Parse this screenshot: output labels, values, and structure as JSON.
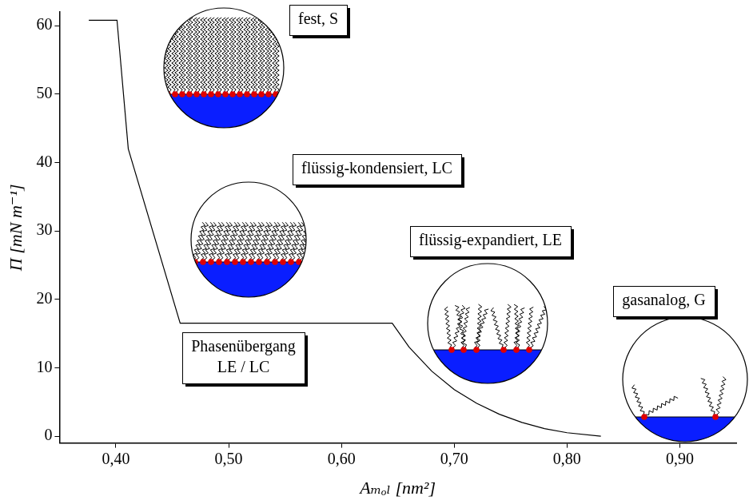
{
  "chart_data": {
    "type": "line",
    "x_label": "Aₘₒₗ [nm²]",
    "y_label": "Π [mN m⁻¹]",
    "x": [
      0.376,
      0.401,
      0.411,
      0.457,
      0.645,
      0.66,
      0.68,
      0.7,
      0.72,
      0.74,
      0.76,
      0.78,
      0.8,
      0.83
    ],
    "values": [
      60.8,
      60.8,
      42,
      16.5,
      16.5,
      13,
      9.5,
      6.8,
      4.8,
      3.2,
      2.0,
      1.1,
      0.5,
      0
    ],
    "color": "#000000",
    "xlim": [
      0.35,
      0.95
    ],
    "ylim": [
      -1,
      62
    ],
    "xticks": [
      {
        "value": 0.4,
        "label": "0,40"
      },
      {
        "value": 0.5,
        "label": "0,50"
      },
      {
        "value": 0.6,
        "label": "0,60"
      },
      {
        "value": 0.7,
        "label": "0,70"
      },
      {
        "value": 0.8,
        "label": "0,80"
      },
      {
        "value": 0.9,
        "label": "0,90"
      }
    ],
    "yticks": [
      0,
      10,
      20,
      30,
      40,
      50,
      60
    ],
    "grid": false,
    "annotations": [
      "fest, S",
      "flüssig-kondensiert, LC",
      "flüssig-expandiert, LE",
      "gasanalog, G",
      "Phasenübergang\nLE / LC"
    ]
  }
}
